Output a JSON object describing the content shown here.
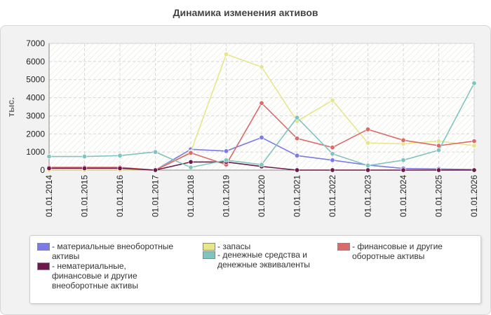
{
  "chart_data": {
    "type": "line",
    "title": "Динамика изменения активов",
    "ylabel": "тыс.",
    "xlabel": "",
    "ylim": [
      0,
      7000
    ],
    "yticks": [
      0,
      1000,
      2000,
      3000,
      4000,
      5000,
      6000,
      7000
    ],
    "grid": true,
    "legend_position": "bottom",
    "categories": [
      "01.01.2014",
      "01.01.2015",
      "01.01.2016",
      "01.01.2017",
      "01.01.2018",
      "01.01.2019",
      "01.01.2020",
      "01.01.2021",
      "01.01.2022",
      "01.01.2023",
      "01.01.2024",
      "01.01.2025",
      "01.01.2026"
    ],
    "series": [
      {
        "name": "- материальные внеоборотные активы",
        "color": "#7b7be6",
        "values": [
          0,
          0,
          0,
          0,
          1150,
          1050,
          1800,
          800,
          550,
          280,
          90,
          60,
          30
        ]
      },
      {
        "name": "- запасы",
        "color": "#e6e68a",
        "values": [
          0,
          0,
          0,
          0,
          1000,
          6400,
          5700,
          2700,
          3850,
          1500,
          1450,
          1600,
          1350
        ]
      },
      {
        "name": "- финансовые и другие оборотные активы",
        "color": "#d96b6b",
        "values": [
          150,
          150,
          150,
          0,
          950,
          300,
          3700,
          1750,
          1250,
          2250,
          1650,
          1350,
          1600
        ]
      },
      {
        "name": "- нематериальные, финансовые и другие внеоборотные активы",
        "color": "#6b1a4a",
        "values": [
          100,
          100,
          100,
          0,
          450,
          450,
          200,
          0,
          0,
          0,
          0,
          0,
          0
        ]
      },
      {
        "name": "- денежные средства и денежные эквиваленты",
        "color": "#80c4c0",
        "values": [
          750,
          750,
          800,
          1000,
          150,
          550,
          300,
          2900,
          900,
          250,
          550,
          1100,
          4800
        ]
      }
    ]
  }
}
